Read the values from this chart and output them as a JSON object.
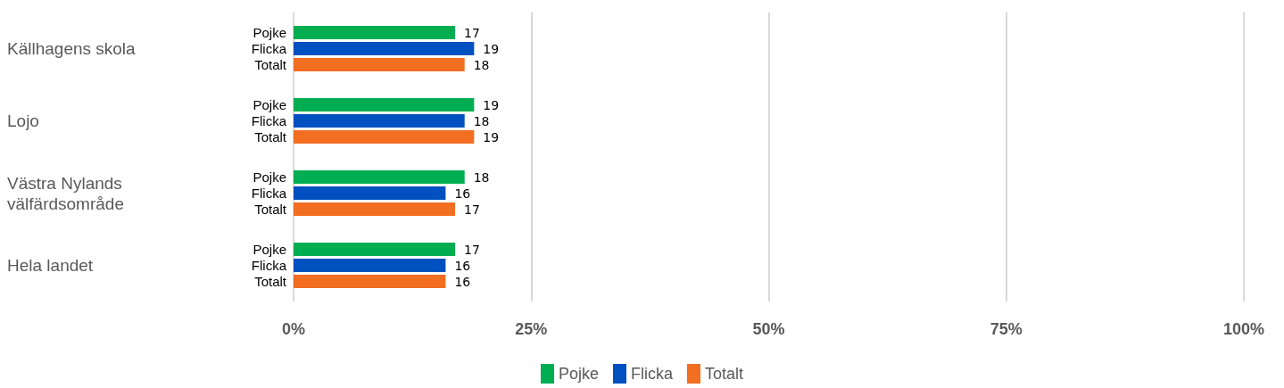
{
  "chart_data": {
    "type": "bar",
    "orientation": "horizontal",
    "categories": [
      "Källhagens skola",
      "Lojo",
      "Västra Nylands välfärdsområde",
      "Hela landet"
    ],
    "series": [
      {
        "name": "Pojke",
        "color": "#00ad50",
        "values": [
          17,
          19,
          18,
          17
        ]
      },
      {
        "name": "Flicka",
        "color": "#0050c0",
        "values": [
          19,
          18,
          16,
          16
        ]
      },
      {
        "name": "Totalt",
        "color": "#f26e21",
        "values": [
          18,
          19,
          17,
          16
        ]
      }
    ],
    "xlim": [
      0,
      100
    ],
    "xticks": [
      {
        "value": 0,
        "label": "0%"
      },
      {
        "value": 25,
        "label": "25%"
      },
      {
        "value": 50,
        "label": "50%"
      },
      {
        "value": 75,
        "label": "75%"
      },
      {
        "value": 100,
        "label": "100%"
      }
    ],
    "data_labels": true,
    "grid": "x",
    "legend": "bottom"
  }
}
